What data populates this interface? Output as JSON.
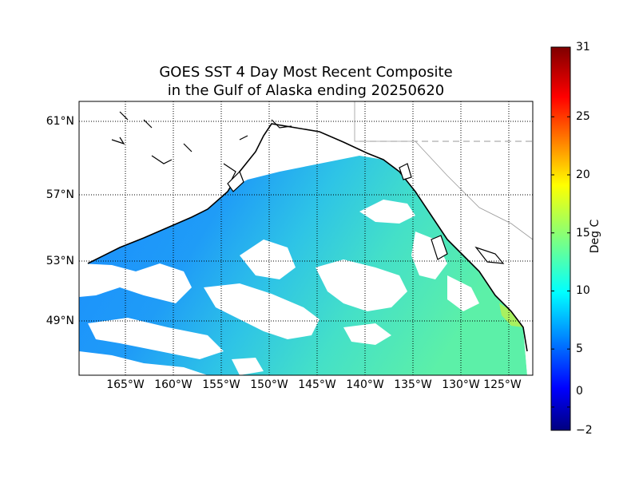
{
  "title_line1": "GOES SST 4 Day Most Recent Composite",
  "title_line2": "in the Gulf of Alaska ending 20250620",
  "lat_labels": [
    "61°N",
    "57°N",
    "53°N",
    "49°N"
  ],
  "lon_labels": [
    "165°W",
    "160°W",
    "155°W",
    "150°W",
    "145°W",
    "140°W",
    "135°W",
    "130°W",
    "125°W"
  ],
  "colorbar": {
    "label": "Deg C",
    "min": -2,
    "max": 31,
    "ticks": [
      "-2",
      "0",
      "5",
      "10",
      "15",
      "20",
      "25",
      "31"
    ],
    "colormap": "jet",
    "colors": [
      "#00007f",
      "#0000ff",
      "#007fff",
      "#00ffff",
      "#7fff7f",
      "#ffff00",
      "#ff7f00",
      "#ff0000",
      "#7f0000"
    ]
  },
  "colors": {
    "land": "#ffffff",
    "no_data": "#ffffff",
    "coastline": "#000000",
    "graticule": "#000000",
    "border": "#999999"
  }
}
